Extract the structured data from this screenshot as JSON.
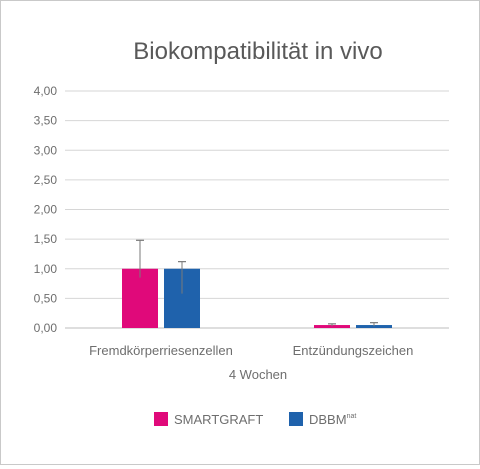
{
  "chart_data": {
    "type": "bar",
    "title": "Biokompatibilität in vivo",
    "xlabel": "4 Wochen",
    "ylabel": "",
    "ylim": [
      0,
      4
    ],
    "y_ticks": [
      "0,00",
      "0,50",
      "1,00",
      "1,50",
      "2,00",
      "2,50",
      "3,00",
      "3,50",
      "4,00"
    ],
    "grid": true,
    "legend_position": "bottom",
    "categories": [
      "Fremdkörperriesenzellen",
      "Entzündungszeichen"
    ],
    "series": [
      {
        "name": "SMARTGRAFT",
        "color": "#e0097a",
        "values": [
          1.0,
          0.05
        ],
        "error_plus": [
          0.48,
          0.02
        ],
        "error_minus": [
          0.15,
          0.02
        ]
      },
      {
        "name": "DBBM",
        "name_sup": "nat",
        "color": "#1f62ac",
        "values": [
          1.0,
          0.05
        ],
        "error_plus": [
          0.12,
          0.04
        ],
        "error_minus": [
          0.42,
          0.02
        ]
      }
    ]
  }
}
